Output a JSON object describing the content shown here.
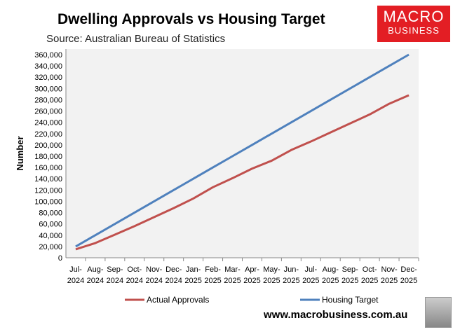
{
  "chart_data": {
    "type": "line",
    "title": "Dwelling Approvals vs Housing Target",
    "subtitle": "Source: Australian Bureau of Statistics",
    "ylabel": "Number",
    "xlabel": "",
    "ylim": [
      0,
      360000
    ],
    "yticks": [
      0,
      20000,
      40000,
      60000,
      80000,
      100000,
      120000,
      140000,
      160000,
      180000,
      200000,
      220000,
      240000,
      260000,
      280000,
      300000,
      320000,
      340000,
      360000
    ],
    "ytick_labels": [
      "0",
      "20,000",
      "40,000",
      "60,000",
      "80,000",
      "100,000",
      "120,000",
      "140,000",
      "160,000",
      "180,000",
      "200,000",
      "220,000",
      "240,000",
      "260,000",
      "280,000",
      "300,000",
      "320,000",
      "340,000",
      "360,000"
    ],
    "categories": [
      [
        "Jul-",
        "2024"
      ],
      [
        "Aug-",
        "2024"
      ],
      [
        "Sep-",
        "2024"
      ],
      [
        "Oct-",
        "2024"
      ],
      [
        "Nov-",
        "2024"
      ],
      [
        "Dec-",
        "2024"
      ],
      [
        "Jan-",
        "2025"
      ],
      [
        "Feb-",
        "2025"
      ],
      [
        "Mar-",
        "2025"
      ],
      [
        "Apr-",
        "2025"
      ],
      [
        "May-",
        "2025"
      ],
      [
        "Jun-",
        "2025"
      ],
      [
        "Jul-",
        "2025"
      ],
      [
        "Aug-",
        "2025"
      ],
      [
        "Sep-",
        "2025"
      ],
      [
        "Oct-",
        "2025"
      ],
      [
        "Nov-",
        "2025"
      ],
      [
        "Dec-",
        "2025"
      ]
    ],
    "grid": false,
    "legend_position": "bottom",
    "series": [
      {
        "name": "Actual Approvals",
        "color": "#c0504d",
        "values": [
          15000,
          26000,
          41000,
          56000,
          72000,
          88000,
          105000,
          125000,
          141000,
          158000,
          172000,
          191000,
          206000,
          222000,
          238000,
          254000,
          273000,
          288000
        ]
      },
      {
        "name": "Housing Target",
        "color": "#4f81bd",
        "values": [
          20000,
          40000,
          60000,
          80000,
          100000,
          120000,
          140000,
          160000,
          180000,
          200000,
          220000,
          240000,
          260000,
          280000,
          300000,
          320000,
          340000,
          360000
        ]
      }
    ]
  },
  "logo": {
    "line1": "MACRO",
    "line2": "BUSINESS"
  },
  "footer": {
    "url": "www.macrobusiness.com.au"
  }
}
